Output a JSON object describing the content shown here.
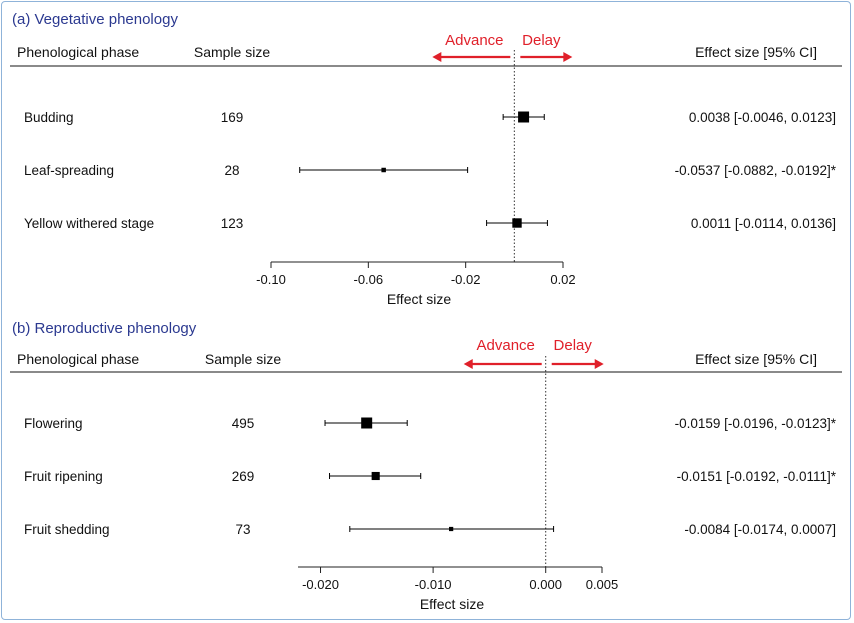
{
  "colors": {
    "title": "#2b3990",
    "arrow": "#e0202a",
    "mark": "#000000",
    "frame": "#8fb3d9"
  },
  "chart_data": [
    {
      "type": "forest",
      "title": "(a) Vegetative phenology",
      "headers": {
        "phase": "Phenological phase",
        "n": "Sample size",
        "effect": "Effect size  [95%  CI]"
      },
      "direction_labels": {
        "left": "Advance",
        "right": "Delay"
      },
      "xlabel": "Effect size",
      "xlim": [
        -0.1,
        0.02
      ],
      "reference_line": 0,
      "ticks": [
        -0.1,
        -0.06,
        -0.02,
        0.02
      ],
      "tick_labels": [
        "-0.10",
        "-0.06",
        "-0.02",
        "0.02"
      ],
      "rows": [
        {
          "phase": "Budding",
          "n": "169",
          "est": 0.0038,
          "lo": -0.0046,
          "hi": 0.0123,
          "label": "0.0038 [-0.0046,  0.0123]",
          "weight": 169
        },
        {
          "phase": "Leaf-spreading",
          "n": "28",
          "est": -0.0537,
          "lo": -0.0882,
          "hi": -0.0192,
          "label": "-0.0537 [-0.0882, -0.0192]*",
          "weight": 28
        },
        {
          "phase": "Yellow withered stage",
          "n": "123",
          "est": 0.0011,
          "lo": -0.0114,
          "hi": 0.0136,
          "label": "0.0011 [-0.0114,  0.0136]",
          "weight": 123
        }
      ]
    },
    {
      "type": "forest",
      "title": "(b) Reproductive phenology",
      "headers": {
        "phase": "Phenological phase",
        "n": "Sample size",
        "effect": "Effect size  [95%  CI]"
      },
      "direction_labels": {
        "left": "Advance",
        "right": "Delay"
      },
      "xlabel": "Effect size",
      "xlim": [
        -0.022,
        0.005
      ],
      "reference_line": 0,
      "ticks": [
        -0.02,
        -0.01,
        0.0,
        0.005
      ],
      "tick_labels": [
        "-0.020",
        "-0.010",
        "0.000",
        "0.005"
      ],
      "rows": [
        {
          "phase": "Flowering",
          "n": "495",
          "est": -0.0159,
          "lo": -0.0196,
          "hi": -0.0123,
          "label": "-0.0159 [-0.0196, -0.0123]*",
          "weight": 495
        },
        {
          "phase": "Fruit ripening",
          "n": "269",
          "est": -0.0151,
          "lo": -0.0192,
          "hi": -0.0111,
          "label": "-0.0151 [-0.0192, -0.0111]*",
          "weight": 269
        },
        {
          "phase": "Fruit shedding",
          "n": "73",
          "est": -0.0084,
          "lo": -0.0174,
          "hi": 0.0007,
          "label": "-0.0084 [-0.0174,  0.0007]",
          "weight": 73
        }
      ]
    }
  ]
}
